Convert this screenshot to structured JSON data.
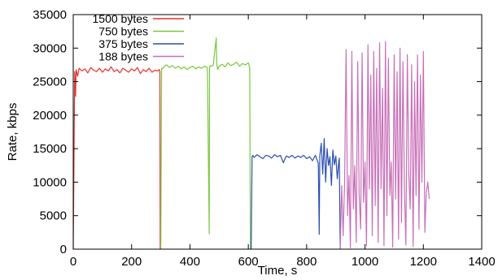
{
  "chart_data": {
    "type": "line",
    "title": "",
    "xlabel": "Time, s",
    "ylabel": "Rate, kbps",
    "xlim": [
      0,
      1400
    ],
    "ylim": [
      0,
      35000
    ],
    "xticks": [
      0,
      200,
      400,
      600,
      800,
      1000,
      1200,
      1400
    ],
    "yticks": [
      0,
      5000,
      10000,
      15000,
      20000,
      25000,
      30000,
      35000
    ],
    "grid": false,
    "legend_position": "top-left",
    "series": [
      {
        "name": "1500 bytes",
        "color": "#e8322d",
        "x": [
          0,
          5,
          8,
          10,
          15,
          20,
          30,
          40,
          50,
          60,
          70,
          80,
          90,
          100,
          110,
          120,
          130,
          140,
          150,
          160,
          170,
          180,
          190,
          200,
          210,
          220,
          230,
          240,
          250,
          260,
          270,
          280,
          290,
          295,
          297,
          298
        ],
        "y": [
          0,
          26500,
          22800,
          26800,
          25800,
          27000,
          26600,
          26900,
          26300,
          27100,
          26700,
          26500,
          27000,
          26400,
          26900,
          26600,
          27200,
          26500,
          26800,
          26300,
          27000,
          26700,
          26400,
          26900,
          26600,
          27100,
          26200,
          26800,
          26500,
          27000,
          26400,
          26700,
          26600,
          26800,
          26500,
          0
        ]
      },
      {
        "name": "750 bytes",
        "color": "#78c83c",
        "x": [
          300,
          303,
          305,
          310,
          320,
          330,
          340,
          350,
          360,
          370,
          380,
          390,
          400,
          410,
          420,
          430,
          440,
          450,
          460,
          466,
          467,
          468,
          470,
          475,
          480,
          490,
          492,
          495,
          500,
          510,
          520,
          530,
          540,
          550,
          560,
          570,
          580,
          590,
          600,
          603,
          605,
          607
        ],
        "y": [
          0,
          27000,
          26900,
          27200,
          27500,
          27100,
          27400,
          27000,
          27300,
          26900,
          27200,
          26800,
          27100,
          27300,
          26900,
          27200,
          27000,
          27300,
          27100,
          2300,
          27000,
          27200,
          27400,
          27300,
          27500,
          31500,
          27600,
          26800,
          27300,
          27600,
          27200,
          27800,
          27400,
          27600,
          27900,
          27300,
          27700,
          27500,
          27800,
          27400,
          27000,
          0
        ]
      },
      {
        "name": "375 bytes",
        "color": "#2c4fb0",
        "x": [
          610,
          613,
          615,
          620,
          630,
          640,
          650,
          660,
          670,
          680,
          690,
          700,
          710,
          720,
          730,
          740,
          750,
          760,
          770,
          780,
          790,
          800,
          810,
          820,
          830,
          840,
          843,
          845,
          850,
          855,
          860,
          865,
          870,
          875,
          880,
          885,
          890,
          895,
          900,
          905,
          910,
          912,
          915
        ],
        "y": [
          0,
          13800,
          14000,
          13700,
          14100,
          13800,
          13500,
          14000,
          13900,
          13600,
          14100,
          13800,
          14000,
          12900,
          13900,
          13700,
          14000,
          13600,
          13900,
          13700,
          14000,
          13500,
          13800,
          13200,
          14000,
          12800,
          2200,
          13900,
          15800,
          11200,
          16500,
          10000,
          15000,
          12500,
          13800,
          9500,
          14800,
          12600,
          13900,
          10500,
          13000,
          13600,
          0
        ]
      },
      {
        "name": "188 bytes",
        "color": "#c870b8",
        "x": [
          915,
          920,
          925,
          930,
          935,
          940,
          945,
          950,
          955,
          960,
          965,
          970,
          975,
          980,
          985,
          990,
          995,
          1000,
          1005,
          1010,
          1015,
          1020,
          1025,
          1030,
          1035,
          1040,
          1045,
          1050,
          1055,
          1060,
          1065,
          1070,
          1075,
          1080,
          1085,
          1090,
          1095,
          1100,
          1105,
          1110,
          1115,
          1120,
          1125,
          1130,
          1135,
          1140,
          1145,
          1150,
          1155,
          1160,
          1165,
          1170,
          1175,
          1180,
          1185,
          1190,
          1195,
          1200,
          1205,
          1210,
          1215,
          1220
        ],
        "y": [
          0,
          9500,
          2000,
          10000,
          29800,
          5000,
          11000,
          200,
          29500,
          6000,
          12500,
          1000,
          28000,
          8000,
          3000,
          29300,
          7000,
          13000,
          500,
          30500,
          9000,
          26000,
          2000,
          29500,
          6500,
          27000,
          1000,
          30800,
          9000,
          24000,
          500,
          31000,
          5000,
          28500,
          8000,
          13000,
          300,
          29000,
          7500,
          26500,
          1500,
          30000,
          4000,
          28000,
          9000,
          600,
          29000,
          11000,
          6000,
          27500,
          400,
          25000,
          8000,
          29000,
          3000,
          26000,
          10000,
          29500,
          2500,
          8500,
          10000,
          7500
        ]
      }
    ]
  }
}
